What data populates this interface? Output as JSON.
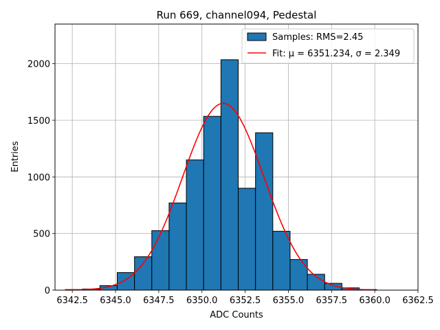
{
  "chart_data": {
    "type": "bar",
    "title": "Run 669, channel094, Pedestal",
    "xlabel": "ADC Counts",
    "ylabel": "Entries",
    "xlim": [
      6341.5,
      6362.5
    ],
    "ylim": [
      0,
      2350
    ],
    "grid": true,
    "legend_position": "top-right",
    "xticks": [
      6342.5,
      6345.0,
      6347.5,
      6350.0,
      6352.5,
      6355.0,
      6357.5,
      6360.0,
      6362.5
    ],
    "xtick_labels": [
      "6342.5",
      "6345.0",
      "6347.5",
      "6350.0",
      "6352.5",
      "6355.0",
      "6357.5",
      "6360.0",
      "6362.5"
    ],
    "yticks": [
      0,
      500,
      1000,
      1500,
      2000
    ],
    "ytick_labels": [
      "0",
      "500",
      "1000",
      "1500",
      "2000"
    ],
    "histogram": {
      "name": "Samples: RMS=2.45",
      "color": "#1f77b4",
      "edgecolor": "#000000",
      "bin_edges": [
        6342.1,
        6343.1,
        6344.1,
        6345.1,
        6346.1,
        6347.1,
        6348.1,
        6349.1,
        6350.1,
        6351.1,
        6352.1,
        6353.1,
        6354.1,
        6355.1,
        6356.1,
        6357.1,
        6358.1,
        6359.1,
        6360.1
      ],
      "counts": [
        5,
        10,
        40,
        155,
        295,
        525,
        770,
        1150,
        1535,
        2035,
        900,
        1390,
        520,
        270,
        140,
        60,
        20,
        5
      ]
    },
    "fit": {
      "name": "Fit: μ = 6351.234, σ = 2.349",
      "color": "#ff0000",
      "mu": 6351.234,
      "sigma": 2.349,
      "amplitude": 1650,
      "x_range": [
        6342.1,
        6360.0
      ]
    }
  }
}
